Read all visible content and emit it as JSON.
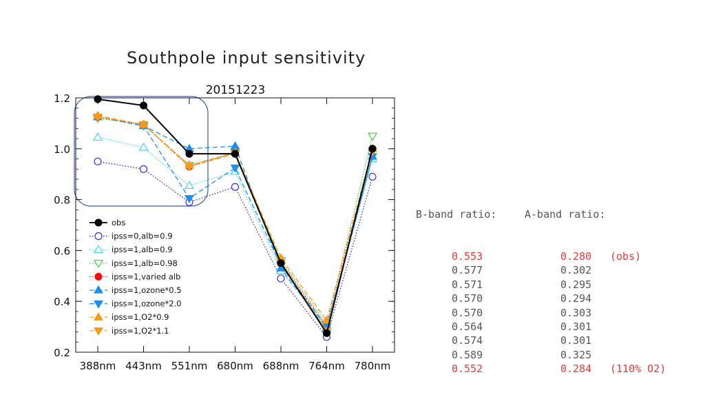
{
  "slide_title": "Southpole input sensitivity",
  "chart_data": {
    "type": "line",
    "title": "20151223",
    "xlabel": "",
    "ylabel": "",
    "categories": [
      "388nm",
      "443nm",
      "551nm",
      "680nm",
      "688nm",
      "764nm",
      "780nm"
    ],
    "ylim": [
      0.2,
      1.2
    ],
    "yticks": [
      "0.2",
      "0.4",
      "0.6",
      "0.8",
      "1.0",
      "1.2"
    ],
    "legend_position": "lower-left",
    "series": [
      {
        "name": "obs",
        "color": "#000000",
        "marker": "circle-filled",
        "line": "solid",
        "values": [
          1.195,
          1.17,
          0.98,
          0.98,
          0.55,
          0.275,
          1.0
        ]
      },
      {
        "name": "ipss=0,alb=0.9",
        "color": "#2a1fd6",
        "marker": "circle-open",
        "line": "dotted",
        "values": [
          0.95,
          0.92,
          0.79,
          0.85,
          0.49,
          0.26,
          0.89
        ]
      },
      {
        "name": "ipss=1,alb=0.9",
        "color": "#33d4f4",
        "marker": "triangle-up-open",
        "line": "dotted",
        "values": [
          1.045,
          1.005,
          0.855,
          0.91,
          0.52,
          0.3,
          0.96
        ]
      },
      {
        "name": "ipss=1,alb=0.98",
        "color": "#33cc33",
        "marker": "triangle-down-open",
        "line": "dotted",
        "values": [
          1.12,
          1.095,
          0.935,
          0.985,
          0.56,
          0.31,
          1.05
        ]
      },
      {
        "name": "ipss=1,varied alb",
        "color": "#ee1111",
        "marker": "circle-filled",
        "line": "dotted",
        "values": [
          1.125,
          1.095,
          0.93,
          0.985,
          0.555,
          0.3,
          1.0
        ]
      },
      {
        "name": "ipss=1,ozone*0.5",
        "color": "#1f8fe8",
        "marker": "triangle-up-filled",
        "line": "dashed",
        "values": [
          1.125,
          1.09,
          1.0,
          1.01,
          0.53,
          0.29,
          0.97
        ]
      },
      {
        "name": "ipss=1,ozone*2.0",
        "color": "#1f8fe8",
        "marker": "triangle-down-filled",
        "line": "dashed",
        "values": [
          1.125,
          1.09,
          0.805,
          0.925,
          0.54,
          0.3,
          0.97
        ]
      },
      {
        "name": "ipss=1,O2*0.9",
        "color": "#f59a1b",
        "marker": "triangle-up-filled",
        "line": "dashed",
        "values": [
          1.13,
          1.095,
          0.935,
          0.985,
          0.57,
          0.325,
          1.0
        ]
      },
      {
        "name": "ipss=1,O2*1.1",
        "color": "#f59a1b",
        "marker": "triangle-down-filled",
        "line": "dashed",
        "values": [
          1.125,
          1.095,
          0.93,
          0.98,
          0.55,
          0.285,
          0.99
        ]
      }
    ]
  },
  "ratio_table": {
    "header_b": "B-band ratio:",
    "header_a": "A-band ratio:",
    "rows": [
      {
        "b": "0.553",
        "a": "0.280",
        "note": "(obs)",
        "highlight": true
      },
      {
        "b": "0.577",
        "a": "0.302",
        "note": "",
        "highlight": false
      },
      {
        "b": "0.571",
        "a": "0.295",
        "note": "",
        "highlight": false
      },
      {
        "b": "0.570",
        "a": "0.294",
        "note": "",
        "highlight": false
      },
      {
        "b": "0.570",
        "a": "0.303",
        "note": "",
        "highlight": false
      },
      {
        "b": "0.564",
        "a": "0.301",
        "note": "",
        "highlight": false
      },
      {
        "b": "0.574",
        "a": "0.301",
        "note": "",
        "highlight": false
      },
      {
        "b": "0.589",
        "a": "0.325",
        "note": "",
        "highlight": false
      },
      {
        "b": "0.552",
        "a": "0.284",
        "note": "(110% O2)",
        "highlight": true
      }
    ]
  }
}
